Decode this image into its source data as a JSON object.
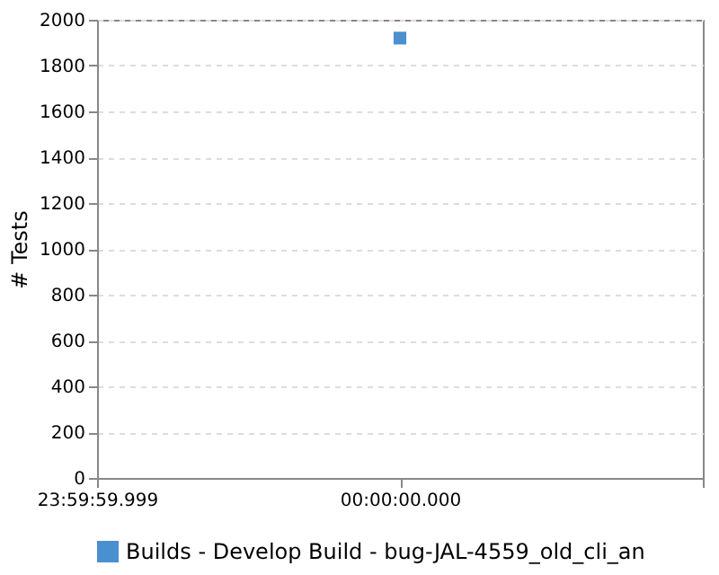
{
  "chart_data": {
    "type": "line",
    "ylabel": "# Tests",
    "categories": [
      "23:59:59.999",
      "00:00:00.000",
      null
    ],
    "series": [
      {
        "name": "Builds - Develop Build - bug-JAL-4559_old_cli_an",
        "color": "#4a8fd0",
        "values": [
          null,
          1920,
          null
        ]
      }
    ],
    "ylim": [
      0,
      2000
    ],
    "yticks": [
      0,
      200,
      400,
      600,
      800,
      1000,
      1200,
      1400,
      1600,
      1800,
      2000
    ],
    "grid": "y",
    "legend": "bottom",
    "marker": "square"
  }
}
